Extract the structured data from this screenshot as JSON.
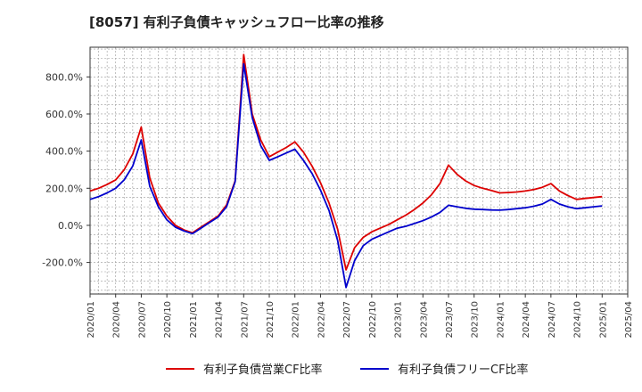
{
  "title": "[8057]  有利子負債キャッシュフロー比率の推移",
  "chart_data": {
    "type": "line",
    "title": "[8057]  有利子負債キャッシュフロー比率の推移",
    "xlabel": "",
    "ylabel": "",
    "ylim": [
      -370,
      960
    ],
    "grid": true,
    "legend_position": "bottom",
    "y_ticks": [
      -200,
      0,
      200,
      400,
      600,
      800
    ],
    "y_tick_labels": [
      "-200.0%",
      "0.0%",
      "200.0%",
      "400.0%",
      "600.0%",
      "800.0%"
    ],
    "x_ticks": [
      "2020/01",
      "2020/04",
      "2020/07",
      "2020/10",
      "2021/01",
      "2021/04",
      "2021/07",
      "2021/10",
      "2022/01",
      "2022/04",
      "2022/07",
      "2022/10",
      "2023/01",
      "2023/04",
      "2023/07",
      "2023/10",
      "2024/01",
      "2024/04",
      "2024/07",
      "2024/10",
      "2025/01",
      "2025/04"
    ],
    "series": [
      {
        "name": "有利子負債営業CF比率",
        "color": "#dd0000",
        "values": [
          [
            "2020/01",
            185
          ],
          [
            "2020/02",
            200
          ],
          [
            "2020/03",
            220
          ],
          [
            "2020/04",
            245
          ],
          [
            "2020/05",
            300
          ],
          [
            "2020/06",
            385
          ],
          [
            "2020/07",
            530
          ],
          [
            "2020/08",
            255
          ],
          [
            "2020/09",
            120
          ],
          [
            "2020/10",
            50
          ],
          [
            "2020/11",
            0
          ],
          [
            "2020/12",
            -25
          ],
          [
            "2021/01",
            -40
          ],
          [
            "2021/02",
            -10
          ],
          [
            "2021/03",
            20
          ],
          [
            "2021/04",
            50
          ],
          [
            "2021/05",
            110
          ],
          [
            "2021/06",
            240
          ],
          [
            "2021/07",
            920
          ],
          [
            "2021/08",
            600
          ],
          [
            "2021/09",
            460
          ],
          [
            "2021/10",
            370
          ],
          [
            "2021/11",
            395
          ],
          [
            "2021/12",
            420
          ],
          [
            "2022/01",
            450
          ],
          [
            "2022/02",
            395
          ],
          [
            "2022/03",
            320
          ],
          [
            "2022/04",
            230
          ],
          [
            "2022/05",
            120
          ],
          [
            "2022/06",
            -20
          ],
          [
            "2022/07",
            -240
          ],
          [
            "2022/08",
            -120
          ],
          [
            "2022/09",
            -65
          ],
          [
            "2022/10",
            -35
          ],
          [
            "2022/11",
            -15
          ],
          [
            "2022/12",
            5
          ],
          [
            "2023/01",
            30
          ],
          [
            "2023/02",
            55
          ],
          [
            "2023/03",
            85
          ],
          [
            "2023/04",
            120
          ],
          [
            "2023/05",
            165
          ],
          [
            "2023/06",
            225
          ],
          [
            "2023/07",
            325
          ],
          [
            "2023/08",
            275
          ],
          [
            "2023/09",
            240
          ],
          [
            "2023/10",
            215
          ],
          [
            "2023/11",
            200
          ],
          [
            "2023/12",
            188
          ],
          [
            "2024/01",
            175
          ],
          [
            "2024/02",
            177
          ],
          [
            "2024/03",
            180
          ],
          [
            "2024/04",
            185
          ],
          [
            "2024/05",
            193
          ],
          [
            "2024/06",
            205
          ],
          [
            "2024/07",
            225
          ],
          [
            "2024/08",
            185
          ],
          [
            "2024/09",
            160
          ],
          [
            "2024/10",
            140
          ],
          [
            "2024/11",
            145
          ],
          [
            "2024/12",
            150
          ],
          [
            "2025/01",
            155
          ]
        ]
      },
      {
        "name": "有利子負債フリーCF比率",
        "color": "#0000cc",
        "values": [
          [
            "2020/01",
            140
          ],
          [
            "2020/02",
            155
          ],
          [
            "2020/03",
            175
          ],
          [
            "2020/04",
            200
          ],
          [
            "2020/05",
            245
          ],
          [
            "2020/06",
            320
          ],
          [
            "2020/07",
            460
          ],
          [
            "2020/08",
            210
          ],
          [
            "2020/09",
            100
          ],
          [
            "2020/10",
            30
          ],
          [
            "2020/11",
            -10
          ],
          [
            "2020/12",
            -30
          ],
          [
            "2021/01",
            -45
          ],
          [
            "2021/02",
            -15
          ],
          [
            "2021/03",
            15
          ],
          [
            "2021/04",
            45
          ],
          [
            "2021/05",
            100
          ],
          [
            "2021/06",
            235
          ],
          [
            "2021/07",
            870
          ],
          [
            "2021/08",
            580
          ],
          [
            "2021/09",
            430
          ],
          [
            "2021/10",
            350
          ],
          [
            "2021/11",
            370
          ],
          [
            "2021/12",
            390
          ],
          [
            "2022/01",
            410
          ],
          [
            "2022/02",
            350
          ],
          [
            "2022/03",
            280
          ],
          [
            "2022/04",
            190
          ],
          [
            "2022/05",
            80
          ],
          [
            "2022/06",
            -80
          ],
          [
            "2022/07",
            -335
          ],
          [
            "2022/08",
            -190
          ],
          [
            "2022/09",
            -110
          ],
          [
            "2022/10",
            -75
          ],
          [
            "2022/11",
            -55
          ],
          [
            "2022/12",
            -35
          ],
          [
            "2023/01",
            -15
          ],
          [
            "2023/02",
            -5
          ],
          [
            "2023/03",
            10
          ],
          [
            "2023/04",
            25
          ],
          [
            "2023/05",
            45
          ],
          [
            "2023/06",
            70
          ],
          [
            "2023/07",
            108
          ],
          [
            "2023/08",
            100
          ],
          [
            "2023/09",
            92
          ],
          [
            "2023/10",
            87
          ],
          [
            "2023/11",
            85
          ],
          [
            "2023/12",
            83
          ],
          [
            "2024/01",
            82
          ],
          [
            "2024/02",
            85
          ],
          [
            "2024/03",
            90
          ],
          [
            "2024/04",
            95
          ],
          [
            "2024/05",
            103
          ],
          [
            "2024/06",
            115
          ],
          [
            "2024/07",
            140
          ],
          [
            "2024/08",
            115
          ],
          [
            "2024/09",
            100
          ],
          [
            "2024/10",
            90
          ],
          [
            "2024/11",
            95
          ],
          [
            "2024/12",
            100
          ],
          [
            "2025/01",
            105
          ]
        ]
      }
    ]
  }
}
